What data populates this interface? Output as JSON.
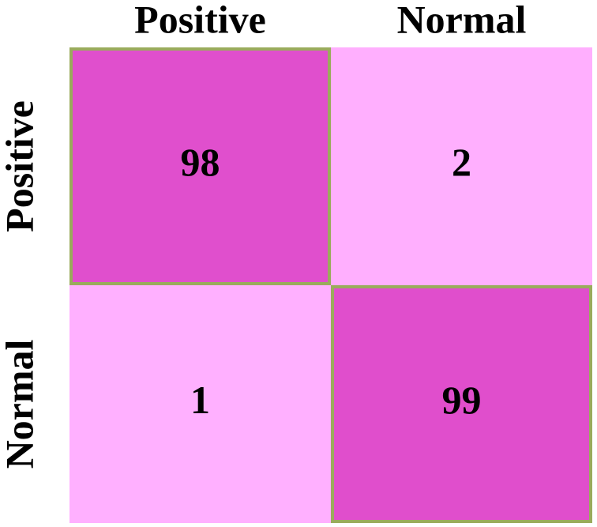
{
  "chart_data": {
    "type": "heatmap",
    "x_categories": [
      "Positive",
      "Normal"
    ],
    "y_categories": [
      "Positive",
      "Normal"
    ],
    "values": [
      [
        98,
        2
      ],
      [
        1,
        99
      ]
    ],
    "colors": [
      "#ffb0ff",
      "#e04ecc"
    ],
    "diagonal_border_color": "#9aab5c"
  }
}
